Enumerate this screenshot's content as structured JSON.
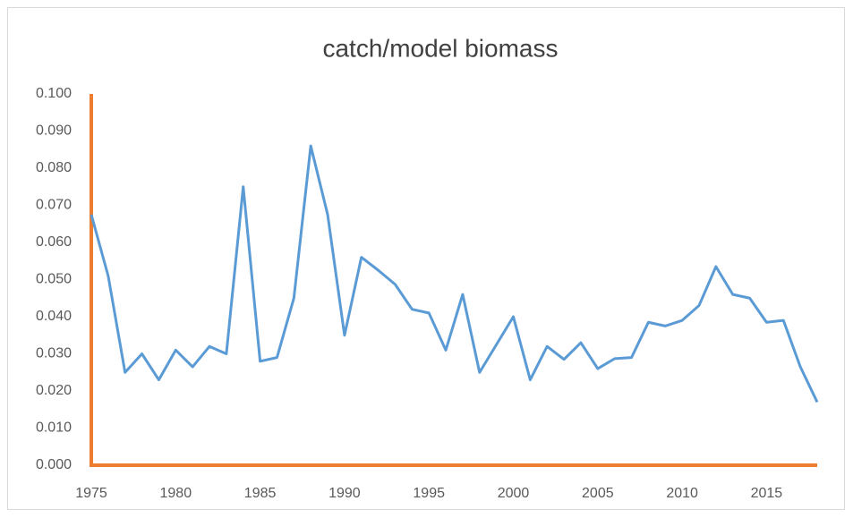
{
  "chart_data": {
    "type": "line",
    "title": "catch/model biomass",
    "x": [
      1975,
      1976,
      1977,
      1978,
      1979,
      1980,
      1981,
      1982,
      1983,
      1984,
      1985,
      1986,
      1987,
      1988,
      1989,
      1990,
      1991,
      1992,
      1993,
      1994,
      1995,
      1996,
      1997,
      1998,
      1999,
      2000,
      2001,
      2002,
      2003,
      2004,
      2005,
      2006,
      2007,
      2008,
      2009,
      2010,
      2011,
      2012,
      2013,
      2014,
      2015,
      2016,
      2017,
      2018
    ],
    "series": [
      {
        "name": "catch/model biomass",
        "color": "#5b9bd5",
        "values": [
          0.0675,
          0.051,
          0.025,
          0.03,
          0.023,
          0.031,
          0.0265,
          0.032,
          0.03,
          0.075,
          0.028,
          0.029,
          0.045,
          0.086,
          0.0675,
          0.035,
          0.056,
          0.0525,
          0.0487,
          0.042,
          0.041,
          0.031,
          0.046,
          0.025,
          0.0325,
          0.04,
          0.023,
          0.032,
          0.0285,
          0.033,
          0.026,
          0.0287,
          0.029,
          0.0385,
          0.0375,
          0.039,
          0.043,
          0.0535,
          0.046,
          0.045,
          0.0385,
          0.039,
          0.0265,
          0.017
        ]
      }
    ],
    "xlim": [
      1975,
      2018
    ],
    "xticks": [
      1975,
      1980,
      1985,
      1990,
      1995,
      2000,
      2005,
      2010,
      2015
    ],
    "ylim": [
      0,
      0.1
    ],
    "yticks": [
      {
        "value": 0,
        "label": "0.000"
      },
      {
        "value": 0.01,
        "label": "0.010"
      },
      {
        "value": 0.02,
        "label": "0.020"
      },
      {
        "value": 0.03,
        "label": "0.030"
      },
      {
        "value": 0.04,
        "label": "0.040"
      },
      {
        "value": 0.05,
        "label": "0.050"
      },
      {
        "value": 0.06,
        "label": "0.060"
      },
      {
        "value": 0.07,
        "label": "0.070"
      },
      {
        "value": 0.08,
        "label": "0.080"
      },
      {
        "value": 0.09,
        "label": "0.090"
      },
      {
        "value": 0.1,
        "label": "0.100"
      }
    ],
    "axis_color": "#ed7d31",
    "grid": false
  }
}
